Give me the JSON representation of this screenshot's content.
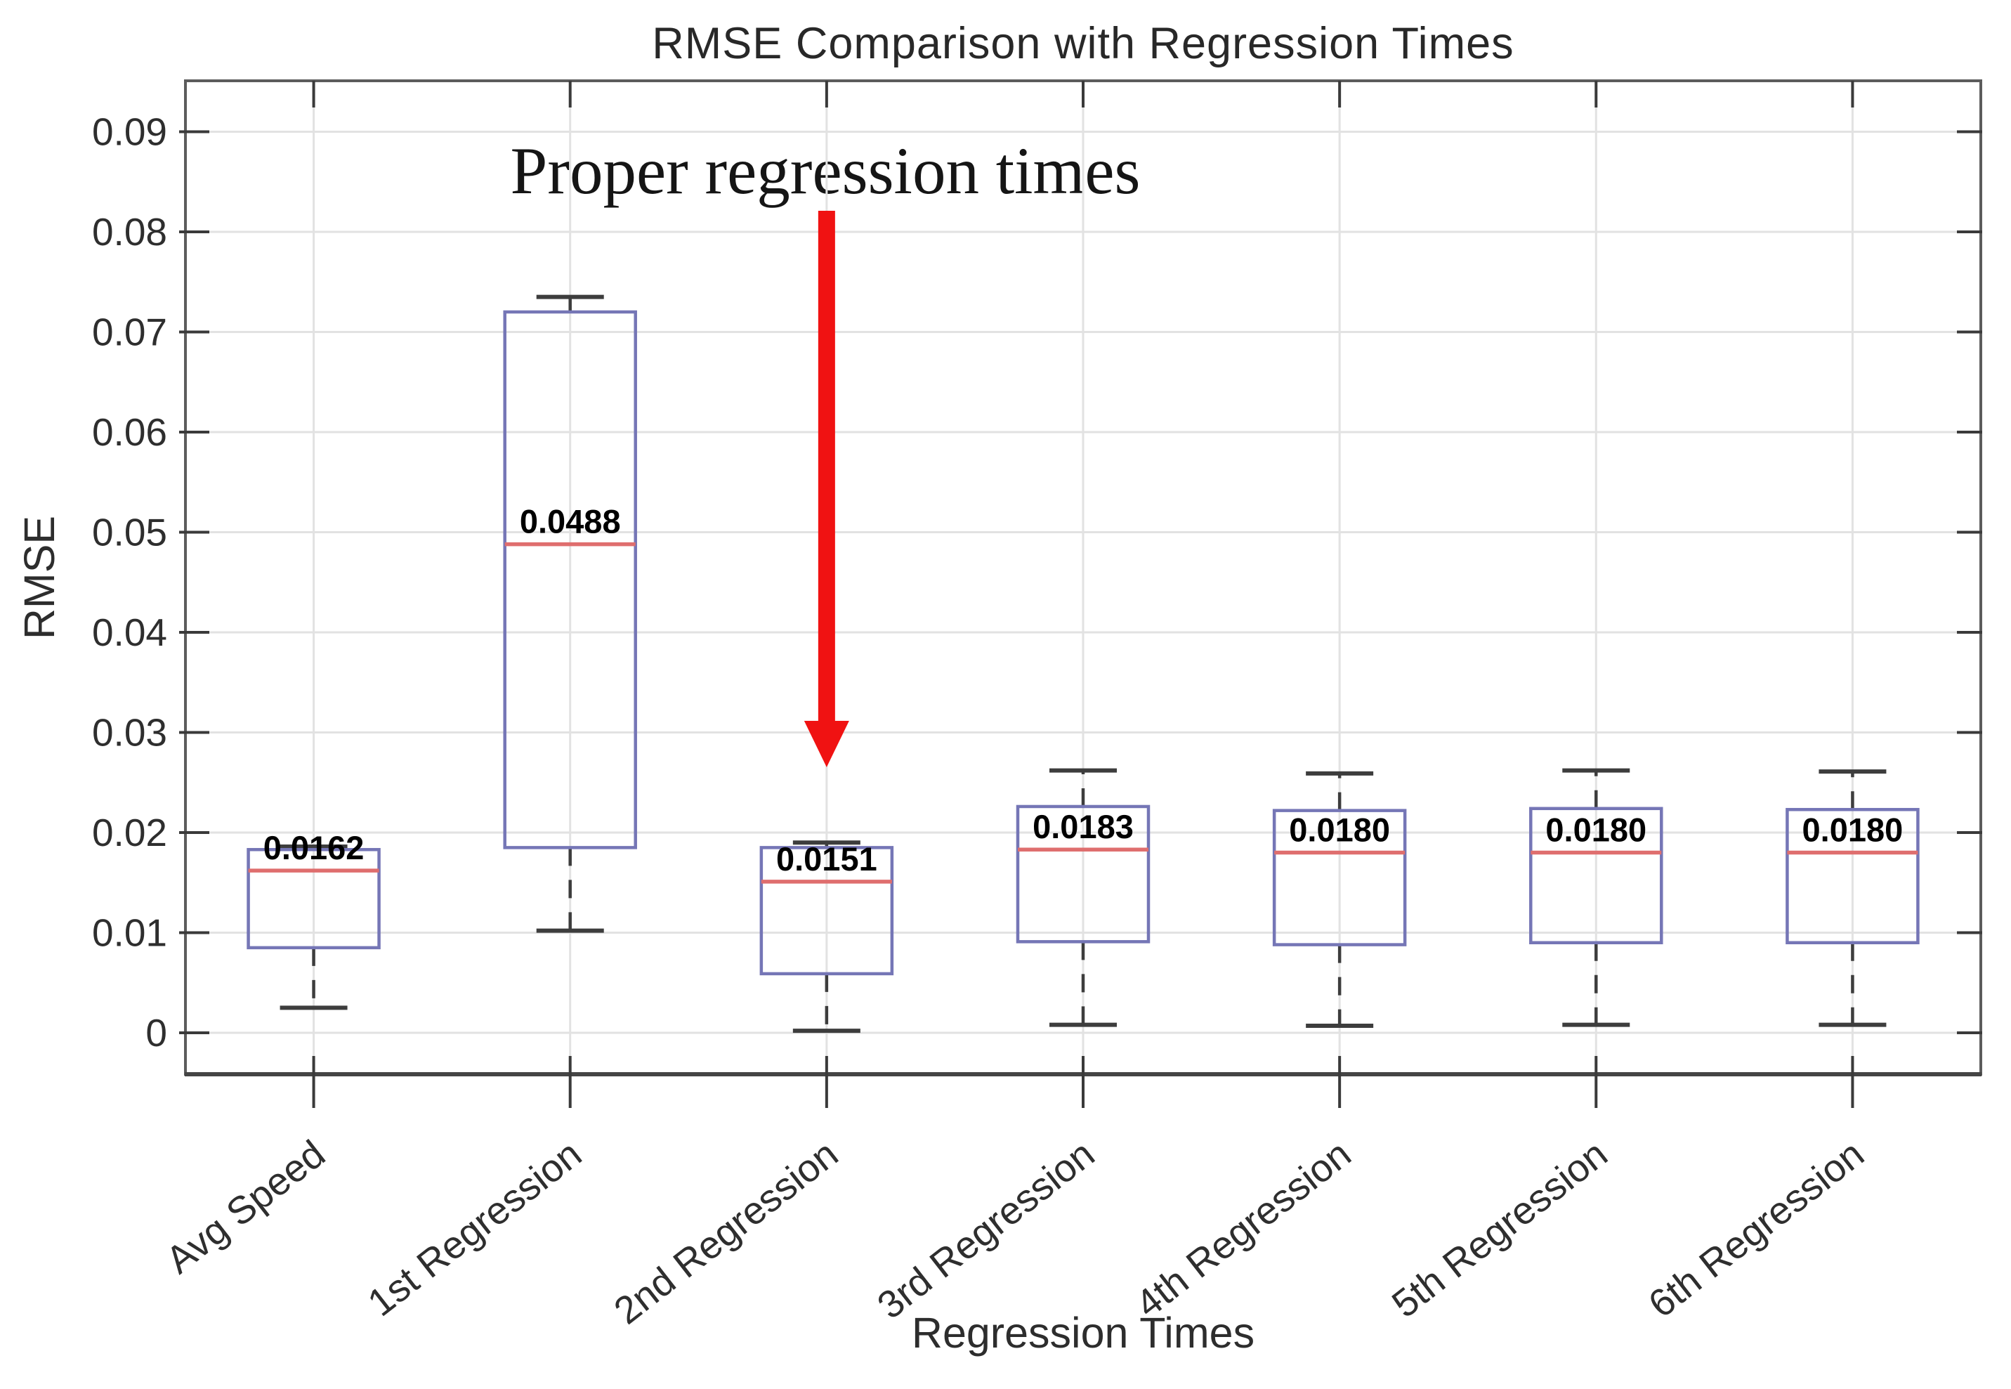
{
  "figure": {
    "title": "RMSE Comparison with Regression Times",
    "xlabel": "Regression Times",
    "ylabel": "RMSE",
    "annotation_text": "Proper regression times"
  },
  "chart_data": {
    "type": "box",
    "title": "RMSE Comparison with Regression Times",
    "xlabel": "Regression Times",
    "ylabel": "RMSE",
    "grid": true,
    "categories": [
      "Avg Speed",
      "1st Regression",
      "2nd Regression",
      "3rd Regression",
      "4th Regression",
      "5th Regression",
      "6th Regression"
    ],
    "ytick_labels": [
      "0",
      "0.01",
      "0.02",
      "0.03",
      "0.04",
      "0.05",
      "0.06",
      "0.07",
      "0.08",
      "0.09"
    ],
    "ytick_values": [
      0,
      0.01,
      0.02,
      0.03,
      0.04,
      0.05,
      0.06,
      0.07,
      0.08,
      0.09
    ],
    "ylim": [
      -0.0042,
      0.0952
    ],
    "xtick_rotation_deg": 38,
    "series": [
      {
        "name": "Avg Speed",
        "whisker_low": 0.0025,
        "q1": 0.0085,
        "median": 0.0162,
        "q3": 0.0183,
        "whisker_high": 0.0186,
        "median_label": "0.0162"
      },
      {
        "name": "1st Regression",
        "whisker_low": 0.0102,
        "q1": 0.0185,
        "median": 0.0488,
        "q3": 0.072,
        "whisker_high": 0.0735,
        "median_label": "0.0488"
      },
      {
        "name": "2nd Regression",
        "whisker_low": 0.0002,
        "q1": 0.0059,
        "median": 0.0151,
        "q3": 0.0185,
        "whisker_high": 0.019,
        "median_label": "0.0151"
      },
      {
        "name": "3rd Regression",
        "whisker_low": 0.0008,
        "q1": 0.0091,
        "median": 0.0183,
        "q3": 0.0226,
        "whisker_high": 0.0262,
        "median_label": "0.0183"
      },
      {
        "name": "4th Regression",
        "whisker_low": 0.0007,
        "q1": 0.0088,
        "median": 0.018,
        "q3": 0.0222,
        "whisker_high": 0.0259,
        "median_label": "0.0180"
      },
      {
        "name": "5th Regression",
        "whisker_low": 0.0008,
        "q1": 0.009,
        "median": 0.018,
        "q3": 0.0224,
        "whisker_high": 0.0262,
        "median_label": "0.0180"
      },
      {
        "name": "6th Regression",
        "whisker_low": 0.0008,
        "q1": 0.009,
        "median": 0.018,
        "q3": 0.0223,
        "whisker_high": 0.0261,
        "median_label": "0.0180"
      }
    ],
    "annotation": {
      "text": "Proper regression times",
      "arrow_points_to_category": "2nd Regression",
      "arrow_direction": "down"
    },
    "colors": {
      "box_edge": "#7576b6",
      "median": "#df6e6e",
      "whisker": "#3d3d3d",
      "grid": "#e2e2e2",
      "frame": "#5c5c5c",
      "frame_bottom": "#454545",
      "arrow": "#f01212",
      "tick_text": "#2e2e2e",
      "value_label": "#000000"
    }
  }
}
